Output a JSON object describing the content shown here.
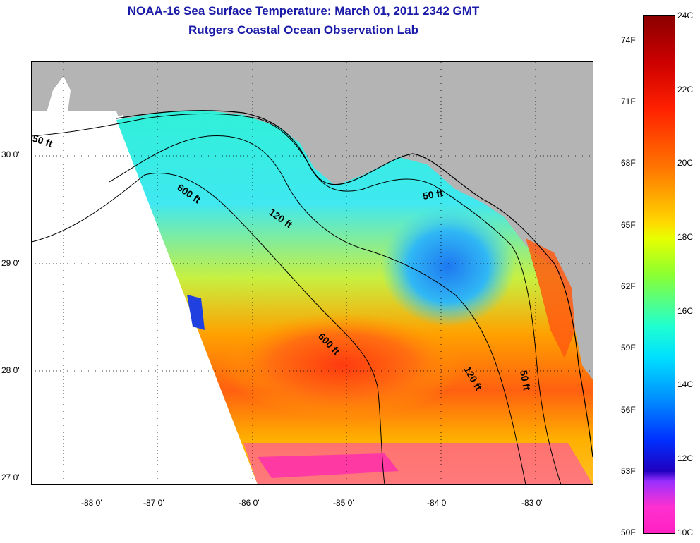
{
  "title": "NOAA-16 Sea Surface Temperature:  March 01, 2011 2342 GMT",
  "subtitle": "Rutgers Coastal Ocean Observation Lab",
  "lon_labels": [
    "-88 0'",
    "-87 0'",
    "-86 0'",
    "-85 0'",
    "-84 0'",
    "-83 0'"
  ],
  "lat_labels": [
    "30 0'",
    "29 0'",
    "28 0'",
    "27 0'"
  ],
  "contour_labels": [
    "50 ft",
    "600 ft",
    "120 ft",
    "50 ft",
    "600 ft",
    "120 ft",
    "50 ft"
  ],
  "colorbar": {
    "fahrenheit": [
      "74F",
      "71F",
      "68F",
      "65F",
      "62F",
      "59F",
      "56F",
      "53F",
      "50F"
    ],
    "celsius": [
      "24C",
      "22C",
      "20C",
      "18C",
      "16C",
      "14C",
      "12C",
      "10C"
    ]
  },
  "colors": {
    "land": "#b4b4b4",
    "title": "#1a1aa8"
  }
}
